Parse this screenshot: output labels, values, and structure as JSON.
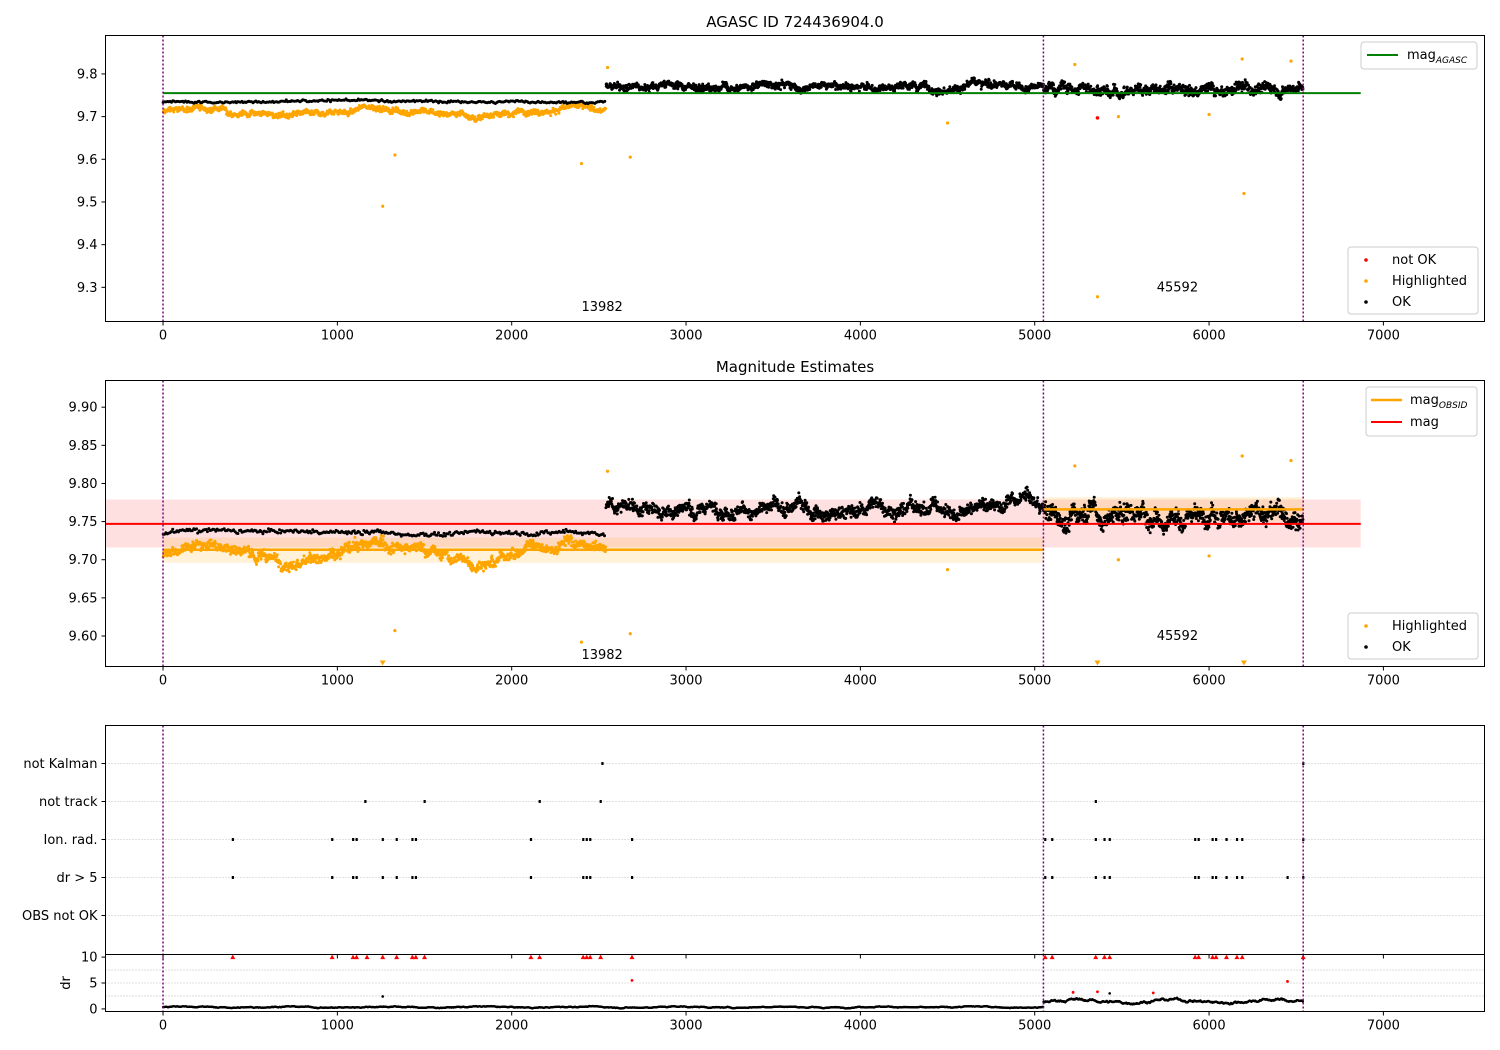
{
  "figure": {
    "width": 1500,
    "height": 1050
  },
  "colors": {
    "ok": "#000000",
    "highlighted": "#ffa500",
    "not_ok": "#ff0000",
    "mag_agasc": "#008000",
    "mag": "#ff0000",
    "mag_obsid": "#ffa500",
    "obsid_line": "#800080",
    "grid": "#b0b0b0"
  },
  "chart_data": [
    {
      "type": "scatter",
      "title": "AGASC ID 724436904.0",
      "xlim": [
        -330,
        7580
      ],
      "ylim": [
        9.22,
        9.89
      ],
      "xticks": [
        0,
        1000,
        2000,
        3000,
        4000,
        5000,
        6000,
        7000
      ],
      "yticks": [
        9.3,
        9.4,
        9.5,
        9.6,
        9.7,
        9.8
      ],
      "obsid_boundaries": [
        0,
        5050,
        6540
      ],
      "obsid_labels": [
        {
          "text": "13982",
          "x": 2400,
          "y": 9.245
        },
        {
          "text": "45592",
          "x": 5700,
          "y": 9.29
        }
      ],
      "mag_agasc": {
        "value": 9.755,
        "x_range": [
          0,
          6870
        ]
      },
      "series_pattern": [
        {
          "name": "OK",
          "segments": [
            {
              "x": [
                0,
                2540
              ],
              "level": 9.735,
              "amp": 0.006,
              "count": 320
            },
            {
              "x": [
                2540,
                5050
              ],
              "level": 9.77,
              "amp": 0.018,
              "count": 1300
            },
            {
              "x": [
                5050,
                6540
              ],
              "level": 9.762,
              "amp": 0.025,
              "count": 850
            }
          ]
        },
        {
          "name": "Highlighted",
          "segments": [
            {
              "x": [
                0,
                2540
              ],
              "level": 9.71,
              "amp": 0.014,
              "count": 1150
            }
          ]
        }
      ],
      "outliers_highlighted": [
        [
          1260,
          9.49
        ],
        [
          1330,
          9.61
        ],
        [
          2400,
          9.59
        ],
        [
          2680,
          9.605
        ],
        [
          5360,
          9.278
        ],
        [
          6200,
          9.52
        ],
        [
          4500,
          9.685
        ],
        [
          5480,
          9.7
        ],
        [
          6000,
          9.705
        ],
        [
          2550,
          9.815
        ],
        [
          5230,
          9.822
        ],
        [
          6190,
          9.835
        ],
        [
          6470,
          9.83
        ]
      ],
      "outliers_not_ok": [
        [
          5360,
          9.697
        ]
      ],
      "legend_top": [
        "magAGASC"
      ],
      "legend_bottom": [
        "not OK",
        "Highlighted",
        "OK"
      ]
    },
    {
      "type": "scatter",
      "title": "Magnitude Estimates",
      "xlim": [
        -330,
        7580
      ],
      "ylim": [
        9.56,
        9.935
      ],
      "xticks": [
        0,
        1000,
        2000,
        3000,
        4000,
        5000,
        6000,
        7000
      ],
      "yticks": [
        9.6,
        9.65,
        9.7,
        9.75,
        9.8,
        9.85,
        9.9
      ],
      "obsid_boundaries": [
        0,
        5050,
        6540
      ],
      "obsid_labels": [
        {
          "text": "13982",
          "x": 2400,
          "y": 9.57
        },
        {
          "text": "45592",
          "x": 5700,
          "y": 9.595
        }
      ],
      "mag": {
        "value": 9.747,
        "band": [
          9.716,
          9.779
        ],
        "x_range": [
          -330,
          6870
        ]
      },
      "mag_obsid": [
        {
          "x_range": [
            0,
            5050
          ],
          "value": 9.713,
          "band": [
            9.696,
            9.729
          ]
        },
        {
          "x_range": [
            5050,
            6540
          ],
          "value": 9.766,
          "band": [
            9.75,
            9.782
          ]
        }
      ],
      "series_pattern": [
        {
          "name": "OK",
          "segments": [
            {
              "x": [
                0,
                2540
              ],
              "level": 9.735,
              "amp": 0.006,
              "count": 320
            },
            {
              "x": [
                2540,
                5050
              ],
              "level": 9.77,
              "amp": 0.018,
              "count": 1300
            },
            {
              "x": [
                5050,
                6540
              ],
              "level": 9.762,
              "amp": 0.025,
              "count": 850
            }
          ]
        },
        {
          "name": "Highlighted",
          "segments": [
            {
              "x": [
                0,
                2540
              ],
              "level": 9.71,
              "amp": 0.014,
              "count": 1150
            }
          ]
        }
      ],
      "outliers_highlighted": [
        [
          1330,
          9.607
        ],
        [
          2400,
          9.592
        ],
        [
          2680,
          9.603
        ],
        [
          4500,
          9.687
        ],
        [
          5480,
          9.7
        ],
        [
          6000,
          9.705
        ],
        [
          2550,
          9.816
        ],
        [
          5230,
          9.823
        ],
        [
          6190,
          9.836
        ],
        [
          6470,
          9.83
        ]
      ],
      "clipped_markers": [
        1260,
        5360,
        6200
      ],
      "legend_top": [
        "magOBSID",
        "mag"
      ],
      "legend_bottom": [
        "Highlighted",
        "OK"
      ]
    },
    {
      "type": "scatter",
      "categories": [
        "not Kalman",
        "not track",
        "Ion. rad.",
        "dr > 5",
        "OBS not OK"
      ],
      "xlim": [
        -330,
        7580
      ],
      "xticks": [
        0,
        1000,
        2000,
        3000,
        4000,
        5000,
        6000,
        7000
      ],
      "obsid_boundaries": [
        0,
        5050,
        6540
      ],
      "flags": {
        "not Kalman": [
          2520,
          6540
        ],
        "not track": [
          1160,
          1500,
          2160,
          2510,
          5350
        ],
        "Ion. rad.": [
          400,
          970,
          1090,
          1110,
          1260,
          1340,
          1430,
          1450,
          2110,
          2410,
          2430,
          2450,
          2690,
          5060,
          5100,
          5350,
          5400,
          5430,
          5920,
          5940,
          6020,
          6040,
          6100,
          6160,
          6190,
          6540
        ],
        "dr > 5": [
          400,
          970,
          1090,
          1110,
          1260,
          1340,
          1430,
          1450,
          2110,
          2410,
          2430,
          2450,
          2690,
          5060,
          5100,
          5350,
          5400,
          5430,
          5920,
          5940,
          6020,
          6040,
          6100,
          6160,
          6190,
          6450,
          6540
        ],
        "OBS not OK": []
      },
      "dr": {
        "ylabel": "dr",
        "ylim": [
          -0.5,
          10.5
        ],
        "yticks": [
          0,
          5,
          10
        ],
        "segments": [
          {
            "x": [
              0,
              5050
            ],
            "level": 0.35,
            "amp": 0.25
          },
          {
            "x": [
              5050,
              6540
            ],
            "level": 1.5,
            "amp": 0.7
          }
        ],
        "clipped_red": [
          400,
          970,
          1090,
          1110,
          1170,
          1260,
          1340,
          1430,
          1450,
          1500,
          2110,
          2160,
          2410,
          2430,
          2450,
          2510,
          2690,
          5060,
          5100,
          5350,
          5400,
          5430,
          5920,
          5940,
          6020,
          6040,
          6100,
          6160,
          6190,
          6540
        ],
        "red_points": [
          [
            2690,
            5.5
          ],
          [
            5220,
            3.2
          ],
          [
            5360,
            3.3
          ],
          [
            6450,
            5.3
          ],
          [
            5680,
            3.1
          ]
        ],
        "black_spikes": [
          [
            1260,
            2.4
          ],
          [
            5430,
            3.0
          ]
        ]
      }
    }
  ]
}
